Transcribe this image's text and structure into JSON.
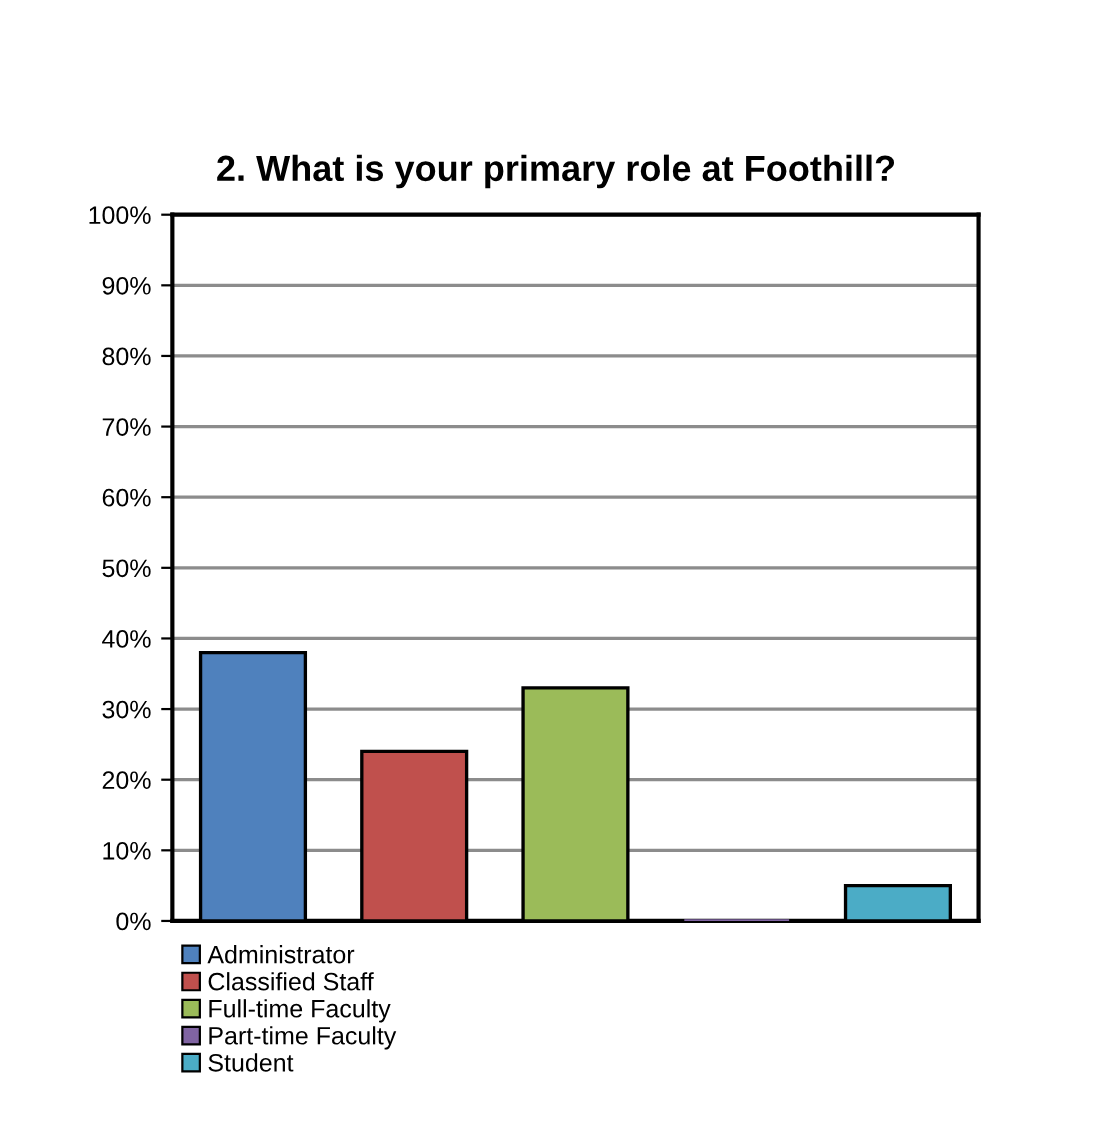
{
  "chart_data": {
    "type": "bar",
    "title": "2. What is your primary role at Foothill?",
    "categories": [
      null,
      null,
      null,
      null,
      null
    ],
    "series": [
      {
        "name": "Administrator",
        "color": "#4f81bd",
        "values": [
          38,
          null,
          null,
          null,
          null
        ]
      },
      {
        "name": "Classified Staff",
        "color": "#c0504d",
        "values": [
          null,
          24,
          null,
          null,
          null
        ]
      },
      {
        "name": "Full-time Faculty",
        "color": "#9bbb59",
        "values": [
          null,
          null,
          33,
          null,
          null
        ]
      },
      {
        "name": "Part-time Faculty",
        "color": "#8064a2",
        "values": [
          null,
          null,
          null,
          0,
          null
        ]
      },
      {
        "name": "Student",
        "color": "#4bacc6",
        "values": [
          null,
          null,
          null,
          null,
          5
        ]
      }
    ],
    "ylim": [
      0,
      100
    ],
    "yticks": [
      {
        "value": 0,
        "label": "0%"
      },
      {
        "value": 10,
        "label": "10%"
      },
      {
        "value": 20,
        "label": "20%"
      },
      {
        "value": 30,
        "label": "30%"
      },
      {
        "value": 40,
        "label": "40%"
      },
      {
        "value": 50,
        "label": "50%"
      },
      {
        "value": 60,
        "label": "60%"
      },
      {
        "value": 70,
        "label": "70%"
      },
      {
        "value": 80,
        "label": "80%"
      },
      {
        "value": 90,
        "label": "90%"
      },
      {
        "value": 100,
        "label": "100%"
      }
    ],
    "grid": "y",
    "legend": "bottom"
  }
}
